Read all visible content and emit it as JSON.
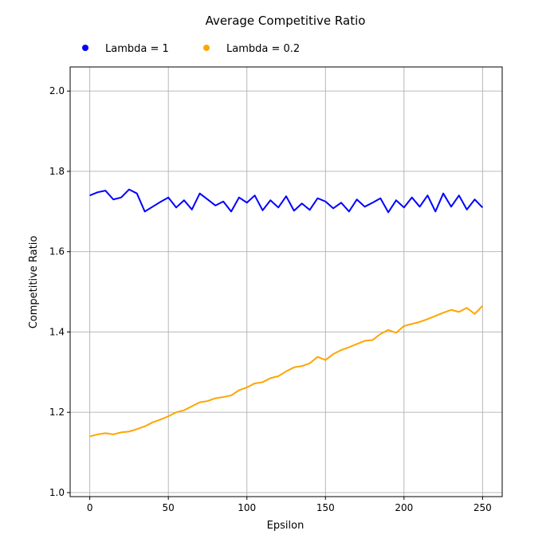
{
  "chart_data": {
    "type": "line",
    "title": "Average Competitive Ratio",
    "xlabel": "Epsilon",
    "ylabel": "Competitive Ratio",
    "xlim": [
      -12.5,
      262.5
    ],
    "ylim": [
      0.99,
      2.06
    ],
    "xticks": [
      0,
      50,
      100,
      150,
      200,
      250
    ],
    "yticks": [
      1.0,
      1.2,
      1.4,
      1.6,
      1.8,
      2.0
    ],
    "xtick_labels": [
      "0",
      "50",
      "100",
      "150",
      "200",
      "250"
    ],
    "ytick_labels": [
      "1.0",
      "1.2",
      "1.4",
      "1.6",
      "1.8",
      "2.0"
    ],
    "grid": true,
    "legend_position": "top-center",
    "x": [
      0,
      5,
      10,
      15,
      20,
      25,
      30,
      35,
      40,
      45,
      50,
      55,
      60,
      65,
      70,
      75,
      80,
      85,
      90,
      95,
      100,
      105,
      110,
      115,
      120,
      125,
      130,
      135,
      140,
      145,
      150,
      155,
      160,
      165,
      170,
      175,
      180,
      185,
      190,
      195,
      200,
      205,
      210,
      215,
      220,
      225,
      230,
      235,
      240,
      245,
      250
    ],
    "series": [
      {
        "name": "Lambda = 1",
        "color": "#0000ff",
        "values": [
          1.74,
          1.748,
          1.752,
          1.73,
          1.735,
          1.755,
          1.745,
          1.7,
          1.712,
          1.724,
          1.735,
          1.71,
          1.728,
          1.705,
          1.745,
          1.73,
          1.715,
          1.725,
          1.7,
          1.735,
          1.722,
          1.74,
          1.703,
          1.728,
          1.71,
          1.738,
          1.702,
          1.72,
          1.704,
          1.733,
          1.725,
          1.708,
          1.722,
          1.7,
          1.73,
          1.712,
          1.722,
          1.733,
          1.698,
          1.728,
          1.71,
          1.735,
          1.712,
          1.74,
          1.7,
          1.745,
          1.712,
          1.74,
          1.705,
          1.73,
          1.71
        ]
      },
      {
        "name": "Lambda = 0.2",
        "color": "#ffa500",
        "values": [
          1.14,
          1.145,
          1.148,
          1.145,
          1.15,
          1.152,
          1.158,
          1.165,
          1.175,
          1.182,
          1.19,
          1.2,
          1.205,
          1.215,
          1.225,
          1.228,
          1.235,
          1.238,
          1.242,
          1.255,
          1.262,
          1.272,
          1.275,
          1.285,
          1.29,
          1.302,
          1.312,
          1.315,
          1.322,
          1.338,
          1.33,
          1.345,
          1.355,
          1.362,
          1.37,
          1.378,
          1.38,
          1.395,
          1.405,
          1.398,
          1.415,
          1.42,
          1.425,
          1.432,
          1.44,
          1.448,
          1.455,
          1.45,
          1.46,
          1.445,
          1.465
        ]
      }
    ]
  }
}
